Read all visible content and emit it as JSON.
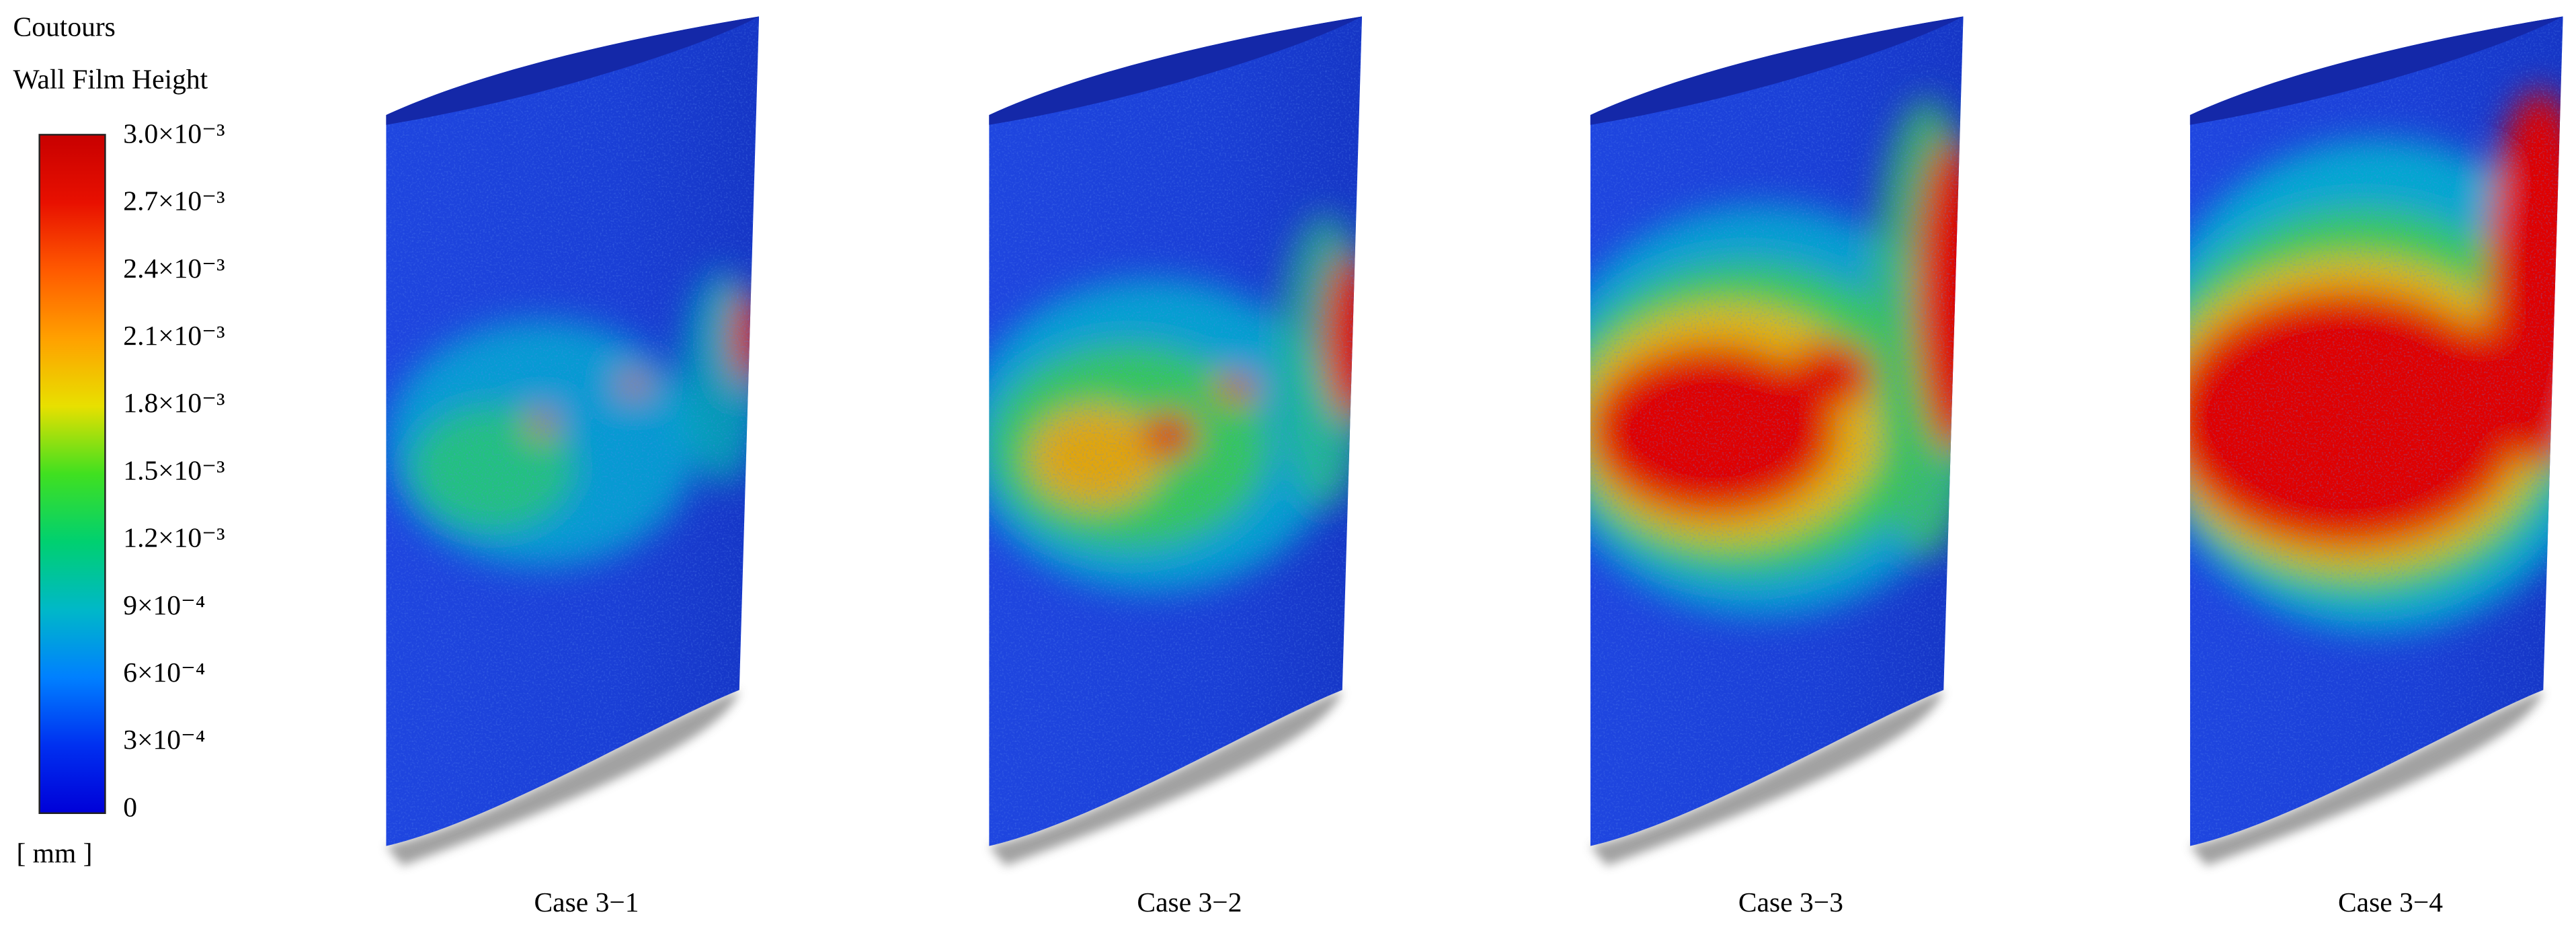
{
  "legend": {
    "title": "Coutours",
    "subtitle": "Wall Film Height",
    "ticks": [
      "3.0×10⁻³",
      "2.7×10⁻³",
      "2.4×10⁻³",
      "2.1×10⁻³",
      "1.8×10⁻³",
      "1.5×10⁻³",
      "1.2×10⁻³",
      "9×10⁻⁴",
      "6×10⁻⁴",
      "3×10⁻⁴",
      "0"
    ],
    "unit": "[ mm ]"
  },
  "panels": [
    {
      "label": "Case 3−1"
    },
    {
      "label": "Case 3−2"
    },
    {
      "label": "Case 3−3"
    },
    {
      "label": "Case 3−4"
    }
  ]
}
